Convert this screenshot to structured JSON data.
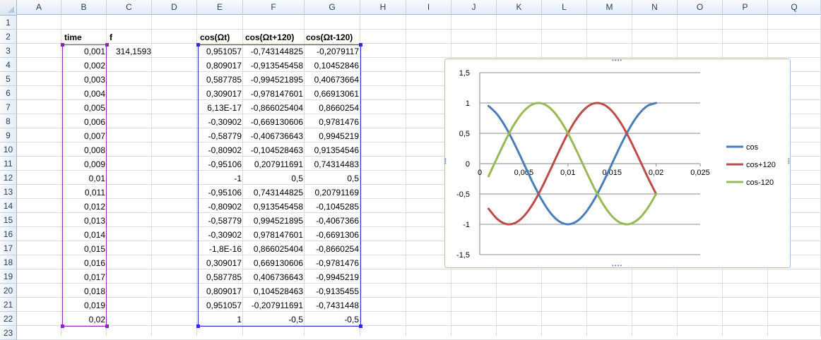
{
  "columns": [
    "A",
    "B",
    "C",
    "D",
    "E",
    "F",
    "G",
    "H",
    "I",
    "J",
    "K",
    "L",
    "M",
    "N",
    "O",
    "P",
    "Q"
  ],
  "rows": [
    "1",
    "2",
    "3",
    "4",
    "5",
    "6",
    "7",
    "8",
    "9",
    "10",
    "11",
    "12",
    "13",
    "14",
    "15",
    "16",
    "17",
    "18",
    "19",
    "20",
    "21",
    "22",
    "23"
  ],
  "headers": {
    "time": "time",
    "f": "f",
    "cos": "cos(Ωt)",
    "cos_plus": "cos(Ωt+120)",
    "cos_minus": "cos(Ωt-120)"
  },
  "f_value": "314,1593",
  "table": [
    [
      "0,001",
      "0,951057",
      "-0,743144825",
      "-0,2079117"
    ],
    [
      "0,002",
      "0,809017",
      "-0,913545458",
      "0,10452846"
    ],
    [
      "0,003",
      "0,587785",
      "-0,994521895",
      "0,40673664"
    ],
    [
      "0,004",
      "0,309017",
      "-0,978147601",
      "0,66913061"
    ],
    [
      "0,005",
      "6,13E-17",
      "-0,866025404",
      "0,8660254"
    ],
    [
      "0,006",
      "-0,30902",
      "-0,669130606",
      "0,9781476"
    ],
    [
      "0,007",
      "-0,58779",
      "-0,406736643",
      "0,9945219"
    ],
    [
      "0,008",
      "-0,80902",
      "-0,104528463",
      "0,91354546"
    ],
    [
      "0,009",
      "-0,95106",
      "0,207911691",
      "0,74314483"
    ],
    [
      "0,01",
      "-1",
      "0,5",
      "0,5"
    ],
    [
      "0,011",
      "-0,95106",
      "0,743144825",
      "0,20791169"
    ],
    [
      "0,012",
      "-0,80902",
      "0,913545458",
      "-0,1045285"
    ],
    [
      "0,013",
      "-0,58779",
      "0,994521895",
      "-0,4067366"
    ],
    [
      "0,014",
      "-0,30902",
      "0,978147601",
      "-0,6691306"
    ],
    [
      "0,015",
      "-1,8E-16",
      "0,866025404",
      "-0,8660254"
    ],
    [
      "0,016",
      "0,309017",
      "0,669130606",
      "-0,9781476"
    ],
    [
      "0,017",
      "0,587785",
      "0,406736643",
      "-0,9945219"
    ],
    [
      "0,018",
      "0,809017",
      "0,104528463",
      "-0,9135455"
    ],
    [
      "0,019",
      "0,951057",
      "-0,207911691",
      "-0,7431448"
    ],
    [
      "0,02",
      "1",
      "-0,5",
      "-0,5"
    ]
  ],
  "chart_data": {
    "type": "line",
    "x": [
      0.001,
      0.002,
      0.003,
      0.004,
      0.005,
      0.006,
      0.007,
      0.008,
      0.009,
      0.01,
      0.011,
      0.012,
      0.013,
      0.014,
      0.015,
      0.016,
      0.017,
      0.018,
      0.019,
      0.02
    ],
    "xlim": [
      0,
      0.025
    ],
    "ylim": [
      -1.5,
      1.5
    ],
    "x_ticks": [
      "0",
      "0,005",
      "0,01",
      "0,015",
      "0,02",
      "0,025"
    ],
    "y_ticks": [
      "1,5",
      "1",
      "0,5",
      "0",
      "-0,5",
      "-1",
      "-1,5"
    ],
    "grid": true,
    "legend": "right",
    "series": [
      {
        "name": "cos",
        "color": "#4a7ebb",
        "values": [
          0.951057,
          0.809017,
          0.587785,
          0.309017,
          0.0,
          -0.30902,
          -0.58779,
          -0.80902,
          -0.95106,
          -1,
          -0.95106,
          -0.80902,
          -0.58779,
          -0.30902,
          0.0,
          0.309017,
          0.587785,
          0.809017,
          0.951057,
          1
        ]
      },
      {
        "name": "cos+120",
        "color": "#be4b48",
        "values": [
          -0.743144825,
          -0.913545458,
          -0.994521895,
          -0.978147601,
          -0.866025404,
          -0.669130606,
          -0.406736643,
          -0.104528463,
          0.207911691,
          0.5,
          0.743144825,
          0.913545458,
          0.994521895,
          0.978147601,
          0.866025404,
          0.669130606,
          0.406736643,
          0.104528463,
          -0.207911691,
          -0.5
        ]
      },
      {
        "name": "cos-120",
        "color": "#98b954",
        "values": [
          -0.2079117,
          0.10452846,
          0.40673664,
          0.66913061,
          0.8660254,
          0.9781476,
          0.9945219,
          0.91354546,
          0.74314483,
          0.5,
          0.20791169,
          -0.1045285,
          -0.4067366,
          -0.6691306,
          -0.8660254,
          -0.9781476,
          -0.9945219,
          -0.9135455,
          -0.7431448,
          -0.5
        ]
      }
    ]
  }
}
